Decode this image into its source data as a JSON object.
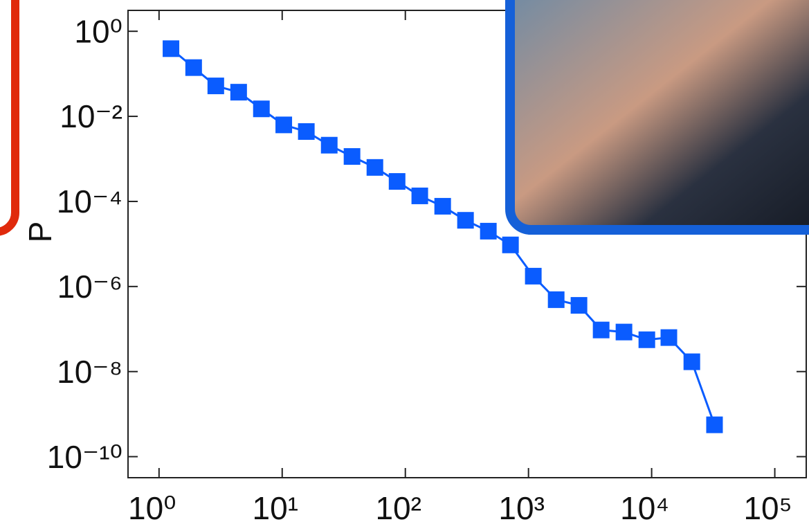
{
  "chart_data": {
    "type": "line",
    "ylabel": "P",
    "log_x": true,
    "log_y": true,
    "color": "#0a5cff",
    "x": [
      1.25,
      1.91,
      2.89,
      4.43,
      6.78,
      10.3,
      15.7,
      24.1,
      36.9,
      56.6,
      85.7,
      131,
      201,
      308,
      472,
      714,
      1094,
      1678,
      2570,
      3890,
      5960,
      9140,
      13800,
      21200,
      32400
    ],
    "values": [
      0.39,
      0.14,
      0.052,
      0.037,
      0.015,
      0.0063,
      0.0044,
      0.0021,
      0.00114,
      0.00063,
      0.000295,
      0.000135,
      7.7e-05,
      3.6e-05,
      2e-05,
      9.5e-06,
      1.75e-06,
      4.9e-07,
      3.6e-07,
      9.5e-08,
      8.5e-08,
      5.6e-08,
      6.3e-08,
      1.7e-08,
      5.6e-10
    ],
    "xlim": [
      0.56,
      180000
    ],
    "ylim": [
      3.2e-11,
      3.1
    ],
    "xticks": [
      {
        "value": 1,
        "label": "10⁰"
      },
      {
        "value": 10,
        "label": "10¹"
      },
      {
        "value": 100,
        "label": "10²"
      },
      {
        "value": 1000,
        "label": "10³"
      },
      {
        "value": 10000,
        "label": "10⁴"
      },
      {
        "value": 100000,
        "label": "10⁵"
      }
    ],
    "yticks": [
      {
        "value": 1,
        "label": "10⁰"
      },
      {
        "value": 0.01,
        "label": "10⁻²"
      },
      {
        "value": 0.0001,
        "label": "10⁻⁴"
      },
      {
        "value": 1e-06,
        "label": "10⁻⁶"
      },
      {
        "value": 1e-08,
        "label": "10⁻⁸"
      },
      {
        "value": 1e-10,
        "label": "10⁻¹⁰"
      }
    ]
  }
}
